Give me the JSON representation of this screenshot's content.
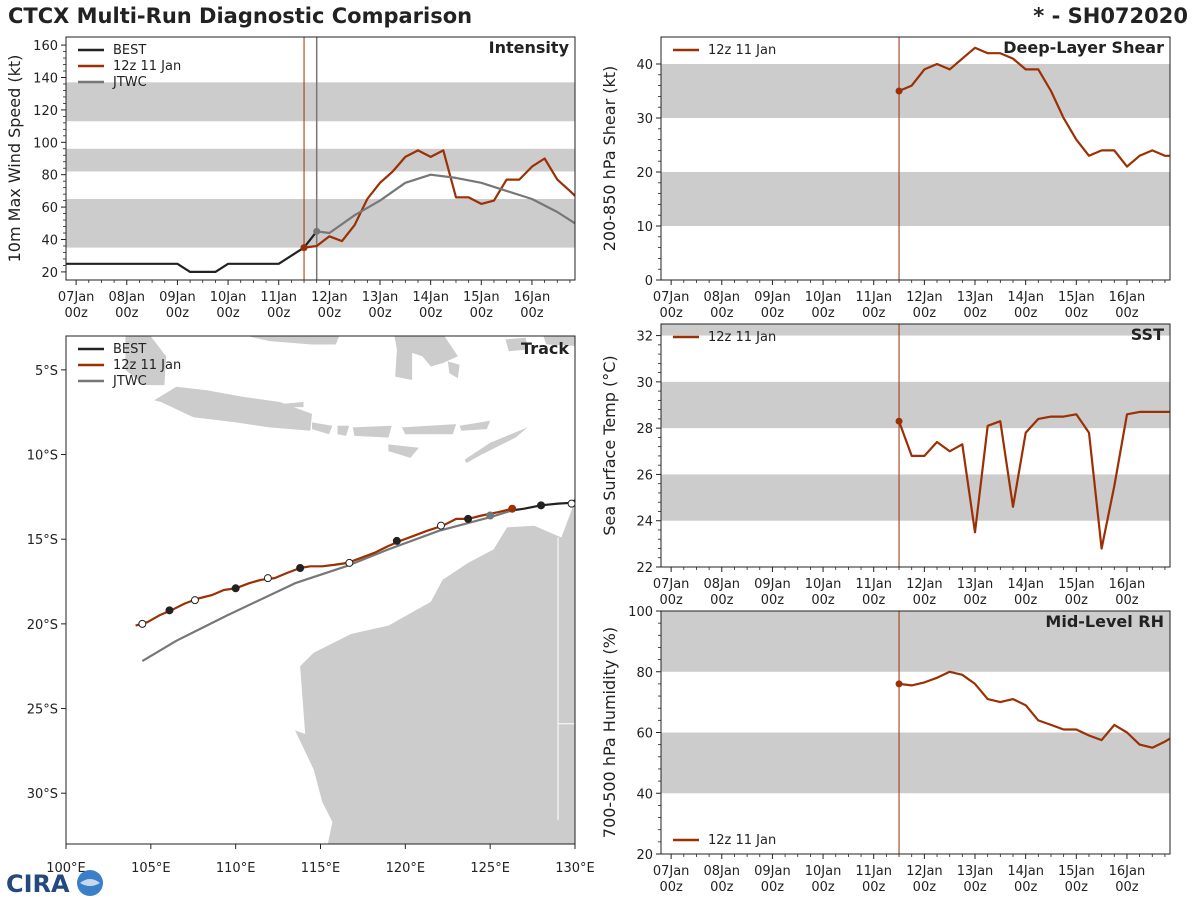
{
  "header": {
    "title": "CTCX Multi-Run Diagnostic Comparison",
    "storm_id": "* - SH072020"
  },
  "logo": {
    "text": "CIRA"
  },
  "colors": {
    "best": "#222222",
    "run": "#9c3005",
    "jtwc": "#777777",
    "band": "#cccccc",
    "land": "#cccccc"
  },
  "time_axis": {
    "labels": [
      [
        "07Jan",
        "00z"
      ],
      [
        "08Jan",
        "00z"
      ],
      [
        "09Jan",
        "00z"
      ],
      [
        "10Jan",
        "00z"
      ],
      [
        "11Jan",
        "00z"
      ],
      [
        "12Jan",
        "00z"
      ],
      [
        "13Jan",
        "00z"
      ],
      [
        "14Jan",
        "00z"
      ],
      [
        "15Jan",
        "00z"
      ],
      [
        "16Jan",
        "00z"
      ]
    ],
    "range_days": [
      -0.2,
      9.85
    ],
    "init_day": 4.5,
    "jtwc_init_day": 4.75
  },
  "chart_data": [
    {
      "id": "intensity",
      "type": "line",
      "title": "Intensity",
      "ylabel": "10m Max Wind Speed (kt)",
      "ylim": [
        15,
        165
      ],
      "yticks": [
        20,
        40,
        60,
        80,
        100,
        120,
        140,
        160
      ],
      "bands": [
        [
          35,
          65
        ],
        [
          82,
          96
        ],
        [
          113,
          137
        ]
      ],
      "legend": [
        "BEST",
        "12z 11 Jan",
        "JTWC"
      ],
      "series": [
        {
          "name": "BEST",
          "color_key": "best",
          "x": [
            -0.2,
            0,
            1,
            2,
            2.25,
            2.5,
            2.75,
            3,
            3.5,
            4,
            4.5,
            4.75
          ],
          "y": [
            25,
            25,
            25,
            25,
            20,
            20,
            20,
            25,
            25,
            25,
            35,
            45
          ]
        },
        {
          "name": "12z 11 Jan",
          "color_key": "run",
          "x": [
            4.5,
            4.75,
            5,
            5.25,
            5.5,
            5.75,
            6,
            6.25,
            6.5,
            6.75,
            7,
            7.25,
            7.5,
            7.75,
            8,
            8.25,
            8.5,
            8.75,
            9,
            9.25,
            9.5,
            9.75,
            9.85
          ],
          "y": [
            35,
            36,
            42,
            39,
            49,
            65,
            75,
            82,
            91,
            95,
            91,
            95,
            66,
            66,
            62,
            64,
            77,
            77,
            85,
            90,
            77,
            70,
            67
          ]
        },
        {
          "name": "JTWC",
          "color_key": "jtwc",
          "x": [
            4.75,
            5,
            5.5,
            6,
            6.5,
            7,
            7.5,
            8,
            8.5,
            9,
            9.5,
            9.85
          ],
          "y": [
            45,
            44,
            55,
            64,
            75,
            80,
            78,
            75,
            70,
            65,
            57,
            50
          ]
        }
      ],
      "markers": [
        {
          "series": "12z 11 Jan",
          "x": 4.5,
          "y": 35
        },
        {
          "series": "JTWC",
          "x": 4.75,
          "y": 45
        }
      ]
    },
    {
      "id": "shear",
      "type": "line",
      "title": "Deep-Layer Shear",
      "ylabel": "200-850 hPa Shear (kt)",
      "ylim": [
        0,
        45
      ],
      "yticks": [
        0,
        10,
        20,
        30,
        40
      ],
      "bands": [
        [
          10,
          20
        ],
        [
          30,
          40
        ]
      ],
      "legend": [
        "12z 11 Jan"
      ],
      "series": [
        {
          "name": "12z 11 Jan",
          "color_key": "run",
          "x": [
            4.5,
            4.75,
            5,
            5.25,
            5.5,
            5.75,
            6,
            6.25,
            6.5,
            6.75,
            7,
            7.25,
            7.5,
            7.75,
            8,
            8.25,
            8.5,
            8.75,
            9,
            9.25,
            9.5,
            9.75,
            9.85
          ],
          "y": [
            35,
            36,
            39,
            40,
            39,
            41,
            43,
            42,
            42,
            41,
            39,
            39,
            35,
            30,
            26,
            23,
            24,
            24,
            21,
            23,
            24,
            23,
            23
          ]
        }
      ],
      "markers": [
        {
          "series": "12z 11 Jan",
          "x": 4.5,
          "y": 35
        }
      ]
    },
    {
      "id": "sst",
      "type": "line",
      "title": "SST",
      "ylabel": "Sea Surface Temp (°C)",
      "ylim": [
        22,
        32.5
      ],
      "yticks": [
        22,
        24,
        26,
        28,
        30,
        32
      ],
      "bands": [
        [
          24,
          26
        ],
        [
          28,
          30
        ],
        [
          32,
          32.5
        ]
      ],
      "legend": [
        "12z 11 Jan"
      ],
      "series": [
        {
          "name": "12z 11 Jan",
          "color_key": "run",
          "x": [
            4.5,
            4.75,
            5,
            5.25,
            5.5,
            5.75,
            6,
            6.25,
            6.5,
            6.75,
            7,
            7.25,
            7.5,
            7.75,
            8,
            8.25,
            8.5,
            8.75,
            9,
            9.25,
            9.5,
            9.75,
            9.85
          ],
          "y": [
            28.3,
            26.8,
            26.8,
            27.4,
            27.0,
            27.3,
            23.5,
            28.1,
            28.3,
            24.6,
            27.8,
            28.4,
            28.5,
            28.5,
            28.6,
            27.8,
            22.8,
            25.5,
            28.6,
            28.7,
            28.7,
            28.7,
            28.7
          ]
        }
      ],
      "markers": [
        {
          "series": "12z 11 Jan",
          "x": 4.5,
          "y": 28.3
        }
      ]
    },
    {
      "id": "rh",
      "type": "line",
      "title": "Mid-Level RH",
      "ylabel": "700-500 hPa Humidity (%)",
      "ylim": [
        20,
        100
      ],
      "yticks": [
        20,
        40,
        60,
        80,
        100
      ],
      "bands": [
        [
          40,
          60
        ],
        [
          80,
          100
        ]
      ],
      "legend": [
        "12z 11 Jan"
      ],
      "legend_position": "bottom-left",
      "series": [
        {
          "name": "12z 11 Jan",
          "color_key": "run",
          "x": [
            4.5,
            4.75,
            5,
            5.25,
            5.5,
            5.75,
            6,
            6.25,
            6.5,
            6.75,
            7,
            7.25,
            7.5,
            7.75,
            8,
            8.25,
            8.5,
            8.75,
            9,
            9.25,
            9.5,
            9.75,
            9.85
          ],
          "y": [
            76,
            75.5,
            76.5,
            78,
            80,
            79,
            76,
            71,
            70,
            71,
            69,
            64,
            62.5,
            61,
            61,
            59,
            57.5,
            62.5,
            60,
            56,
            55,
            57,
            58
          ]
        }
      ],
      "markers": [
        {
          "series": "12z 11 Jan",
          "x": 4.5,
          "y": 76
        }
      ]
    },
    {
      "id": "track",
      "type": "scatter",
      "title": "Track",
      "xlim": [
        100,
        130
      ],
      "ylim": [
        -33,
        -3
      ],
      "xticks": [
        100,
        105,
        110,
        115,
        120,
        125,
        130
      ],
      "xtick_labels": [
        "100°E",
        "105°E",
        "110°E",
        "115°E",
        "120°E",
        "125°E",
        "130°E"
      ],
      "yticks": [
        -5,
        -10,
        -15,
        -20,
        -25,
        -30
      ],
      "ytick_labels": [
        "5°S",
        "10°S",
        "15°S",
        "20°S",
        "25°S",
        "30°S"
      ],
      "legend": [
        "BEST",
        "12z 11 Jan",
        "JTWC"
      ],
      "series": [
        {
          "name": "BEST",
          "color_key": "best",
          "lon": [
            126.3,
            127,
            128,
            129,
            129.8,
            130
          ],
          "lat": [
            -13.3,
            -13.2,
            -13.0,
            -12.9,
            -12.85,
            -12.7
          ]
        },
        {
          "name": "12z 11 Jan",
          "color_key": "run",
          "lon": [
            126.3,
            125.5,
            124.5,
            123.7,
            123.0,
            122.2,
            121.3,
            120.5,
            119.7,
            119.0,
            118.2,
            117.4,
            116.6,
            115.9,
            115.1,
            114.4,
            113.8,
            113.0,
            112.3,
            111.5,
            110.8,
            110.0,
            109.3,
            108.6,
            107.8,
            107.0,
            106.2,
            105.5,
            104.8,
            104.1
          ],
          "lat": [
            -13.2,
            -13.4,
            -13.6,
            -13.8,
            -13.8,
            -14.2,
            -14.5,
            -14.8,
            -15.1,
            -15.4,
            -15.8,
            -16.1,
            -16.4,
            -16.5,
            -16.6,
            -16.6,
            -16.7,
            -17.0,
            -17.3,
            -17.4,
            -17.6,
            -17.9,
            -18.0,
            -18.3,
            -18.5,
            -18.8,
            -19.2,
            -19.5,
            -19.9,
            -20.1
          ]
        },
        {
          "name": "JTWC",
          "color_key": "jtwc",
          "lon": [
            126.3,
            125,
            122,
            119,
            116.5,
            113.5,
            109.5,
            106.5,
            104.5
          ],
          "lat": [
            -13.3,
            -13.7,
            -14.5,
            -15.6,
            -16.6,
            -17.6,
            -19.5,
            -21.0,
            -22.2
          ]
        }
      ],
      "markers": [
        {
          "series": "BEST",
          "lon": 128.0,
          "lat": -13.0,
          "fill": "filled"
        },
        {
          "series": "BEST",
          "lon": 129.8,
          "lat": -12.9,
          "fill": "open"
        },
        {
          "series": "12z 11 Jan",
          "lon": 126.3,
          "lat": -13.2,
          "fill": "filled"
        },
        {
          "series": "12z 11 Jan",
          "lon": 123.7,
          "lat": -13.8,
          "fill": "filled"
        },
        {
          "series": "12z 11 Jan",
          "lon": 122.1,
          "lat": -14.2,
          "fill": "open"
        },
        {
          "series": "12z 11 Jan",
          "lon": 119.5,
          "lat": -15.1,
          "fill": "filled"
        },
        {
          "series": "12z 11 Jan",
          "lon": 116.7,
          "lat": -16.4,
          "fill": "open"
        },
        {
          "series": "12z 11 Jan",
          "lon": 113.8,
          "lat": -16.7,
          "fill": "filled"
        },
        {
          "series": "12z 11 Jan",
          "lon": 111.9,
          "lat": -17.3,
          "fill": "open"
        },
        {
          "series": "12z 11 Jan",
          "lon": 110.0,
          "lat": -17.9,
          "fill": "filled"
        },
        {
          "series": "12z 11 Jan",
          "lon": 107.6,
          "lat": -18.6,
          "fill": "open"
        },
        {
          "series": "12z 11 Jan",
          "lon": 106.1,
          "lat": -19.2,
          "fill": "filled"
        },
        {
          "series": "12z 11 Jan",
          "lon": 104.5,
          "lat": -20.0,
          "fill": "open"
        },
        {
          "series": "JTWC",
          "lon": 125.0,
          "lat": -13.6,
          "fill": "filled"
        }
      ]
    }
  ]
}
